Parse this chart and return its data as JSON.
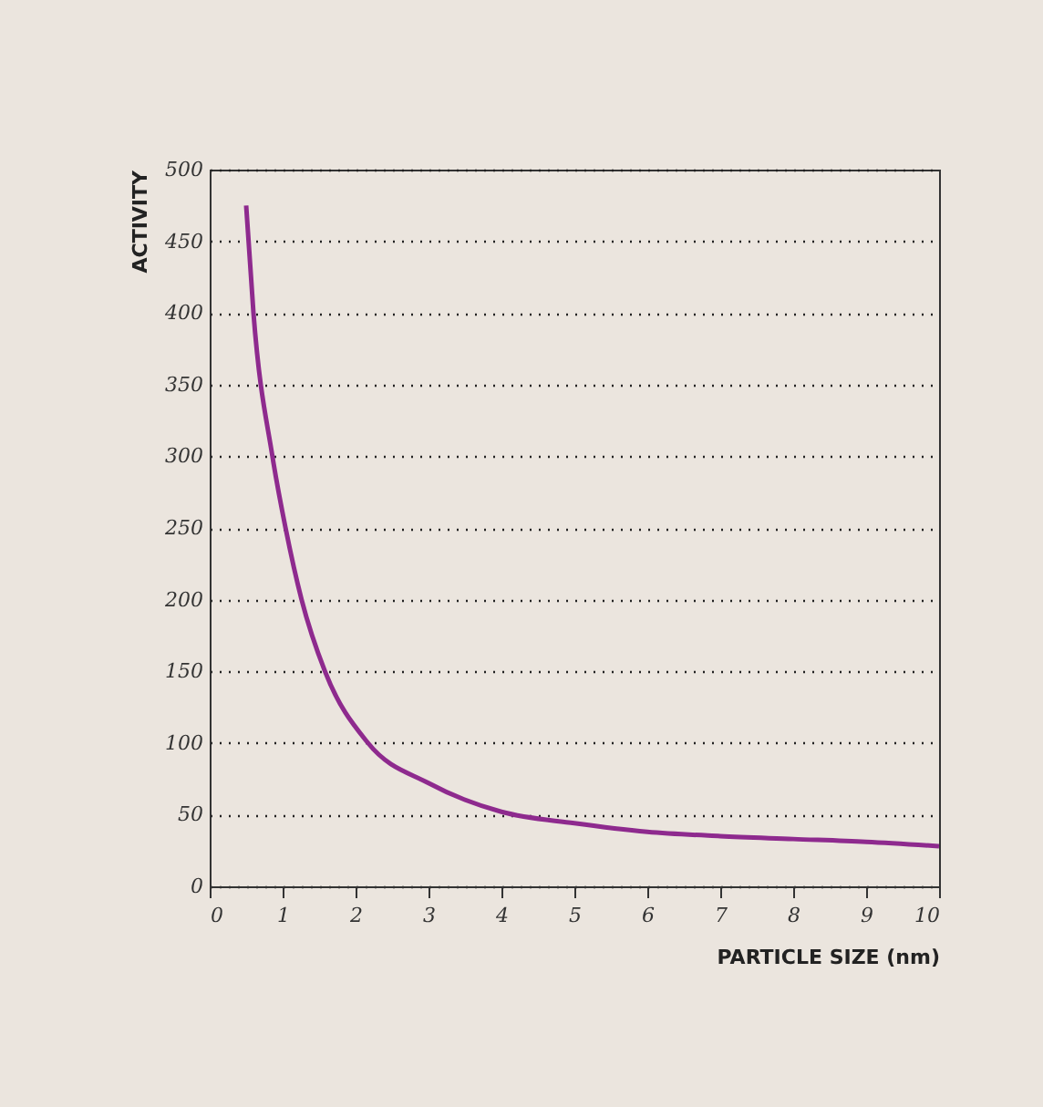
{
  "chart_data": {
    "type": "line",
    "xlabel": "PARTICLE SIZE (nm)",
    "ylabel": "ACTIVITY",
    "x": [
      0.5,
      0.6,
      0.86,
      1.04,
      1.26,
      1.58,
      2.17,
      3,
      4,
      5,
      6,
      7,
      8,
      9,
      10
    ],
    "series": [
      {
        "color": "#8e2a8e",
        "values": [
          475,
          400,
          300,
          250,
          200,
          150,
          100,
          72,
          52,
          44,
          38,
          35,
          33,
          31,
          28
        ]
      }
    ],
    "xlim": [
      0,
      10
    ],
    "xticks": [
      0,
      1,
      2,
      3,
      4,
      5,
      6,
      7,
      8,
      9,
      10
    ],
    "ylim": [
      0,
      500
    ],
    "yticks": [
      0,
      50,
      100,
      150,
      200,
      250,
      300,
      350,
      400,
      450,
      500
    ],
    "grid": "y",
    "marker": "none",
    "line_style": "solid"
  }
}
